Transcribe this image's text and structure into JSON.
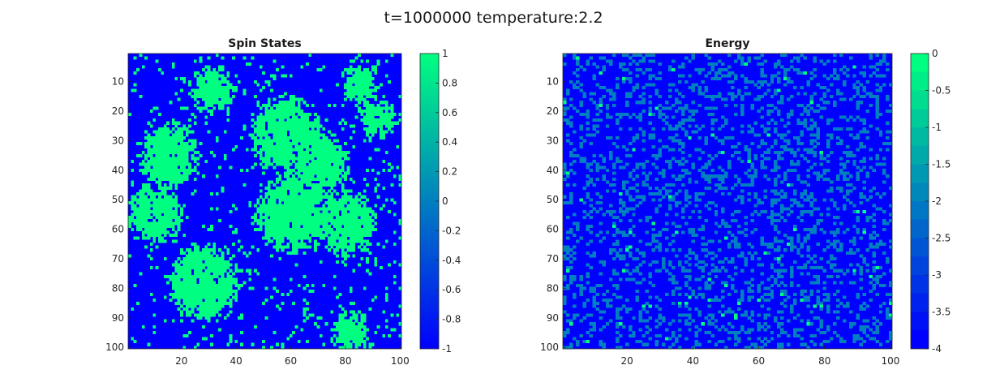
{
  "figure": {
    "title": "t=1000000 temperature:2.2"
  },
  "colors": {
    "low": "#0000ff",
    "high": "#00ff80",
    "axis": "#262626"
  },
  "chart_data": [
    {
      "type": "heatmap",
      "title": "Spin States",
      "grid_size": [
        100,
        100
      ],
      "x_ticks": [
        20,
        40,
        60,
        80,
        100
      ],
      "y_ticks": [
        10,
        20,
        30,
        40,
        50,
        60,
        70,
        80,
        90,
        100
      ],
      "clim": [
        -1,
        1
      ],
      "colorbar_ticks": [
        "1",
        "0.8",
        "0.6",
        "0.4",
        "0.2",
        "0",
        "-0.2",
        "-0.4",
        "-0.6",
        "-0.8",
        "-1"
      ],
      "values_description": "100x100 lattice of spins, each -1 (blue) or +1 (green), clustered domains",
      "domains_plus_one": [
        {
          "cx": 32,
          "cy": 12,
          "r": 7
        },
        {
          "cx": 85,
          "cy": 10,
          "r": 6
        },
        {
          "cx": 92,
          "cy": 22,
          "r": 6
        },
        {
          "cx": 58,
          "cy": 28,
          "r": 12
        },
        {
          "cx": 70,
          "cy": 38,
          "r": 10
        },
        {
          "cx": 15,
          "cy": 35,
          "r": 10
        },
        {
          "cx": 10,
          "cy": 55,
          "r": 9
        },
        {
          "cx": 60,
          "cy": 55,
          "r": 12
        },
        {
          "cx": 80,
          "cy": 58,
          "r": 10
        },
        {
          "cx": 28,
          "cy": 78,
          "r": 12
        },
        {
          "cx": 82,
          "cy": 95,
          "r": 6
        }
      ]
    },
    {
      "type": "heatmap",
      "title": "Energy",
      "grid_size": [
        100,
        100
      ],
      "x_ticks": [
        20,
        40,
        60,
        80,
        100
      ],
      "y_ticks": [
        10,
        20,
        30,
        40,
        50,
        60,
        70,
        80,
        90,
        100
      ],
      "clim": [
        -4,
        0
      ],
      "colorbar_ticks": [
        "0",
        "-0.5",
        "-1",
        "-1.5",
        "-2",
        "-2.5",
        "-3",
        "-3.5",
        "-4"
      ],
      "values_description": "100x100 lattice of local energies in {-4,-2,0}, mostly -4 with scattered -2 and rare 0"
    }
  ]
}
